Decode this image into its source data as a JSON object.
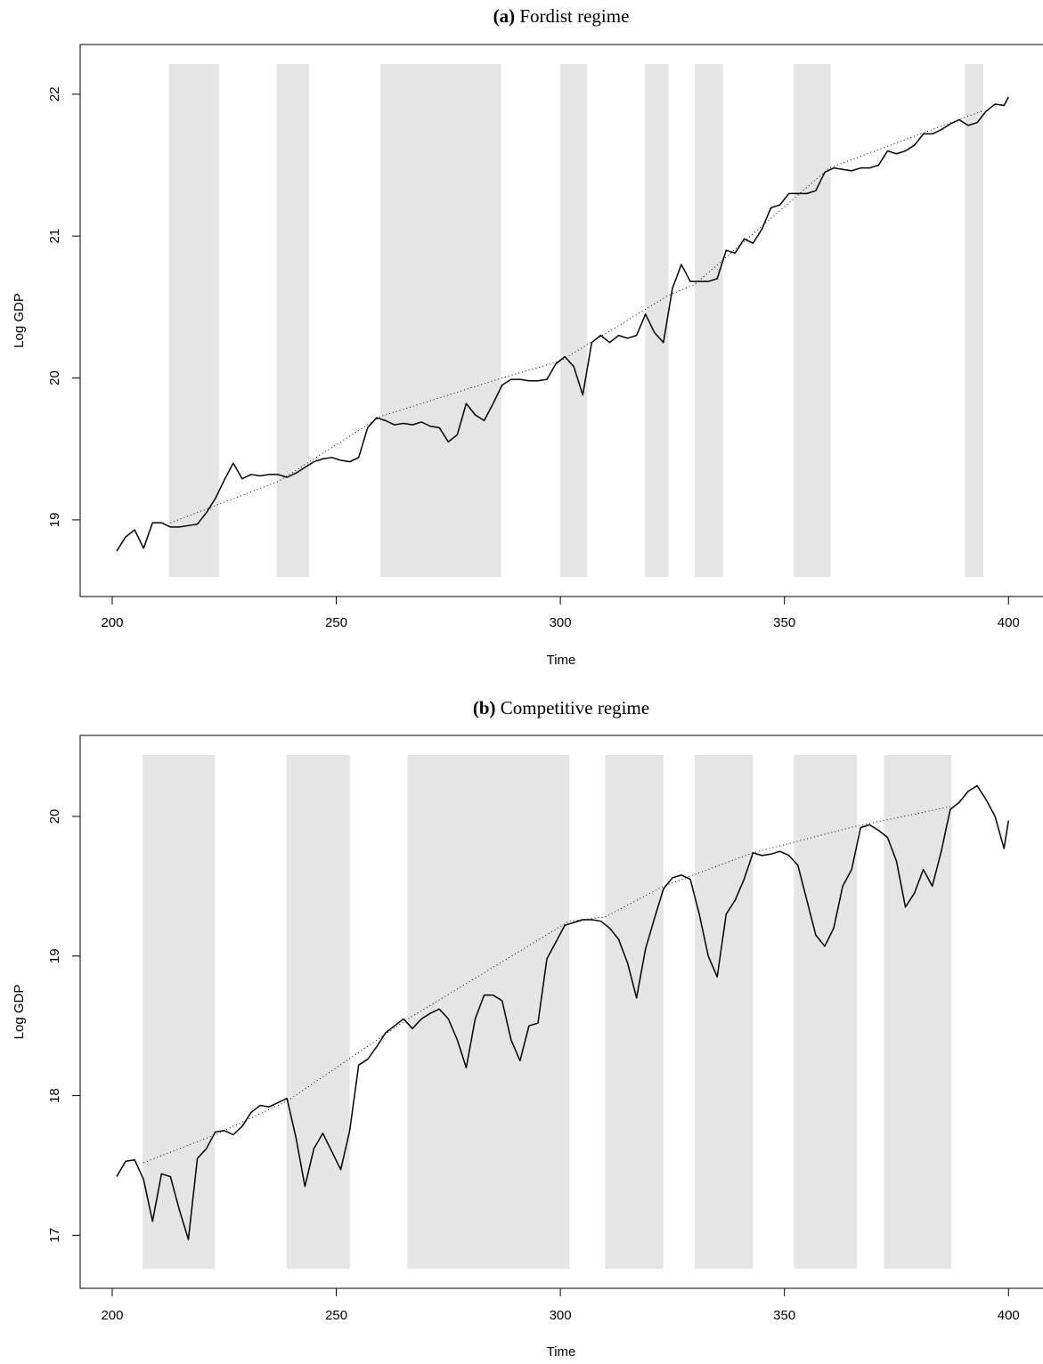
{
  "chart_data": [
    {
      "type": "line",
      "panel_label": "(a)",
      "title": "Fordist regime",
      "x_label": "Time",
      "y_label": "Log GDP",
      "xlim": [
        192.85,
        407.5
      ],
      "ylim": [
        18.46,
        22.35
      ],
      "xticks": [
        200,
        250,
        300,
        350,
        400
      ],
      "yticks": [
        19,
        20,
        21,
        22
      ],
      "color": "#000000",
      "region_color": "#e5e5e5",
      "shaded_regions": [
        [
          212.7,
          223.8
        ],
        [
          236.7,
          243.9
        ],
        [
          259.8,
          286.8
        ],
        [
          300,
          306
        ],
        [
          318.9,
          324.1
        ],
        [
          330,
          336.3
        ],
        [
          352.1,
          360.3
        ],
        [
          390.3,
          394.4
        ]
      ],
      "x": [
        201,
        203,
        205,
        207,
        209,
        211,
        213,
        215,
        217,
        219,
        221,
        223,
        225,
        227,
        229,
        231,
        233,
        235,
        237,
        239,
        241,
        243,
        245,
        247,
        249,
        251,
        253,
        255,
        257,
        259,
        261,
        263,
        265,
        267,
        269,
        271,
        273,
        275,
        277,
        279,
        281,
        283,
        285,
        287,
        289,
        291,
        293,
        295,
        297,
        299,
        301,
        303,
        305,
        307,
        309,
        311,
        313,
        315,
        317,
        319,
        321,
        323,
        325,
        327,
        329,
        331,
        333,
        335,
        337,
        339,
        341,
        343,
        345,
        347,
        349,
        351,
        353,
        355,
        357,
        359,
        361,
        363,
        365,
        367,
        369,
        371,
        373,
        375,
        377,
        379,
        381,
        383,
        385,
        387,
        389,
        391,
        393,
        395,
        397,
        399,
        400
      ],
      "values": [
        18.78,
        18.88,
        18.93,
        18.8,
        18.98,
        18.98,
        18.95,
        18.95,
        18.96,
        18.97,
        19.05,
        19.15,
        19.28,
        19.4,
        19.29,
        19.32,
        19.31,
        19.32,
        19.32,
        19.3,
        19.33,
        19.37,
        19.41,
        19.43,
        19.44,
        19.42,
        19.41,
        19.44,
        19.65,
        19.72,
        19.7,
        19.67,
        19.68,
        19.67,
        19.69,
        19.66,
        19.65,
        19.55,
        19.6,
        19.82,
        19.74,
        19.7,
        19.82,
        19.95,
        19.99,
        19.99,
        19.98,
        19.98,
        19.99,
        20.1,
        20.15,
        20.08,
        19.88,
        20.25,
        20.3,
        20.25,
        20.3,
        20.28,
        20.3,
        20.45,
        20.32,
        20.25,
        20.63,
        20.8,
        20.68,
        20.68,
        20.68,
        20.7,
        20.9,
        20.88,
        20.98,
        20.95,
        21.05,
        21.2,
        21.22,
        21.3,
        21.3,
        21.3,
        21.32,
        21.45,
        21.48,
        21.47,
        21.46,
        21.48,
        21.48,
        21.5,
        21.6,
        21.58,
        21.6,
        21.64,
        21.72,
        21.72,
        21.75,
        21.79,
        21.82,
        21.78,
        21.8,
        21.88,
        21.93,
        21.92,
        21.98
      ],
      "trend": {
        "x": [
          213,
          237,
          260,
          287,
          300,
          324,
          330,
          360,
          394
        ],
        "values": [
          18.98,
          19.27,
          19.73,
          20.0,
          20.12,
          20.58,
          20.66,
          21.48,
          21.88
        ]
      }
    },
    {
      "type": "line",
      "panel_label": "(b)",
      "title": "Competitive regime",
      "x_label": "Time",
      "y_label": "Log GDP",
      "xlim": [
        192.85,
        407.5
      ],
      "ylim": [
        16.62,
        20.58
      ],
      "xticks": [
        200,
        250,
        300,
        350,
        400
      ],
      "yticks": [
        17,
        18,
        19,
        20
      ],
      "color": "#000000",
      "region_color": "#e5e5e5",
      "shaded_regions": [
        [
          206.8,
          222.9
        ],
        [
          238.9,
          253
        ],
        [
          265.9,
          302
        ],
        [
          310,
          323
        ],
        [
          330,
          343
        ],
        [
          352.1,
          366.2
        ],
        [
          372.2,
          387.3
        ]
      ],
      "x": [
        201,
        203,
        205,
        207,
        209,
        211,
        213,
        215,
        217,
        219,
        221,
        223,
        225,
        227,
        229,
        231,
        233,
        235,
        237,
        239,
        241,
        243,
        245,
        247,
        249,
        251,
        253,
        255,
        257,
        259,
        261,
        263,
        265,
        267,
        269,
        271,
        273,
        275,
        277,
        279,
        281,
        283,
        285,
        287,
        289,
        291,
        293,
        295,
        297,
        299,
        301,
        303,
        305,
        307,
        309,
        311,
        313,
        315,
        317,
        319,
        321,
        323,
        325,
        327,
        329,
        331,
        333,
        335,
        337,
        339,
        341,
        343,
        345,
        347,
        349,
        351,
        353,
        355,
        357,
        359,
        361,
        363,
        365,
        367,
        369,
        371,
        373,
        375,
        377,
        379,
        381,
        383,
        385,
        387,
        389,
        391,
        393,
        395,
        397,
        399,
        400
      ],
      "values": [
        17.42,
        17.53,
        17.54,
        17.4,
        17.1,
        17.44,
        17.42,
        17.18,
        16.97,
        17.55,
        17.62,
        17.74,
        17.75,
        17.72,
        17.78,
        17.88,
        17.93,
        17.92,
        17.95,
        17.98,
        17.7,
        17.35,
        17.62,
        17.73,
        17.6,
        17.47,
        17.75,
        18.22,
        18.26,
        18.35,
        18.45,
        18.5,
        18.55,
        18.48,
        18.55,
        18.59,
        18.62,
        18.55,
        18.4,
        18.2,
        18.55,
        18.72,
        18.72,
        18.68,
        18.4,
        18.25,
        18.5,
        18.52,
        18.98,
        19.1,
        19.22,
        19.24,
        19.26,
        19.26,
        19.25,
        19.2,
        19.12,
        18.95,
        18.7,
        19.05,
        19.27,
        19.48,
        19.56,
        19.58,
        19.55,
        19.3,
        19.0,
        18.85,
        19.3,
        19.4,
        19.55,
        19.74,
        19.72,
        19.73,
        19.75,
        19.72,
        19.65,
        19.4,
        19.15,
        19.07,
        19.2,
        19.5,
        19.62,
        19.92,
        19.94,
        19.9,
        19.85,
        19.68,
        19.35,
        19.45,
        19.62,
        19.5,
        19.75,
        20.05,
        20.1,
        20.18,
        20.22,
        20.12,
        20.0,
        19.77,
        19.97
      ],
      "trend": {
        "x": [
          207,
          223,
          239,
          266,
          302,
          310,
          323,
          343,
          366,
          387
        ],
        "values": [
          17.52,
          17.72,
          17.96,
          18.55,
          19.25,
          19.28,
          19.5,
          19.74,
          19.93,
          20.07
        ]
      }
    }
  ]
}
